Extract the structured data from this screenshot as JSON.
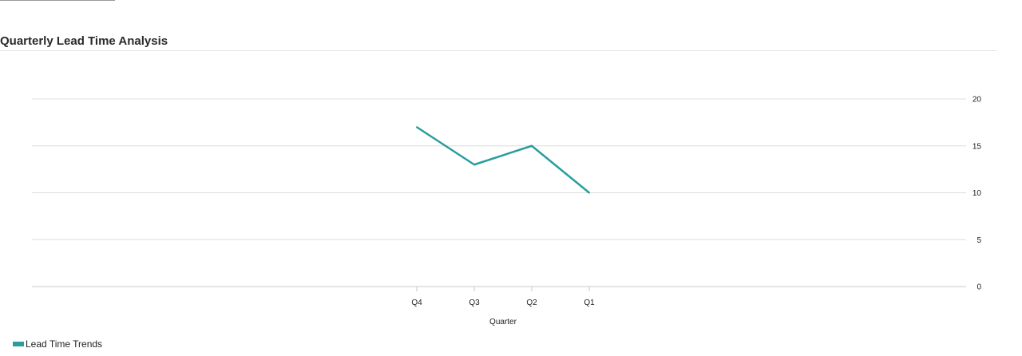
{
  "chart_data": {
    "type": "line",
    "title": "Quarterly Lead Time Analysis",
    "xlabel": "Quarter",
    "ylabel": "",
    "categories": [
      "Q4",
      "Q3",
      "Q2",
      "Q1"
    ],
    "series": [
      {
        "name": "Lead Time Trends",
        "values": [
          17,
          13,
          15,
          10
        ],
        "color": "#2a9d9f"
      }
    ],
    "ylim": [
      0,
      20
    ],
    "yticks": [
      0,
      5,
      10,
      15,
      20
    ],
    "y_axis_side": "right",
    "grid": true,
    "legend_position": "bottom-left"
  }
}
